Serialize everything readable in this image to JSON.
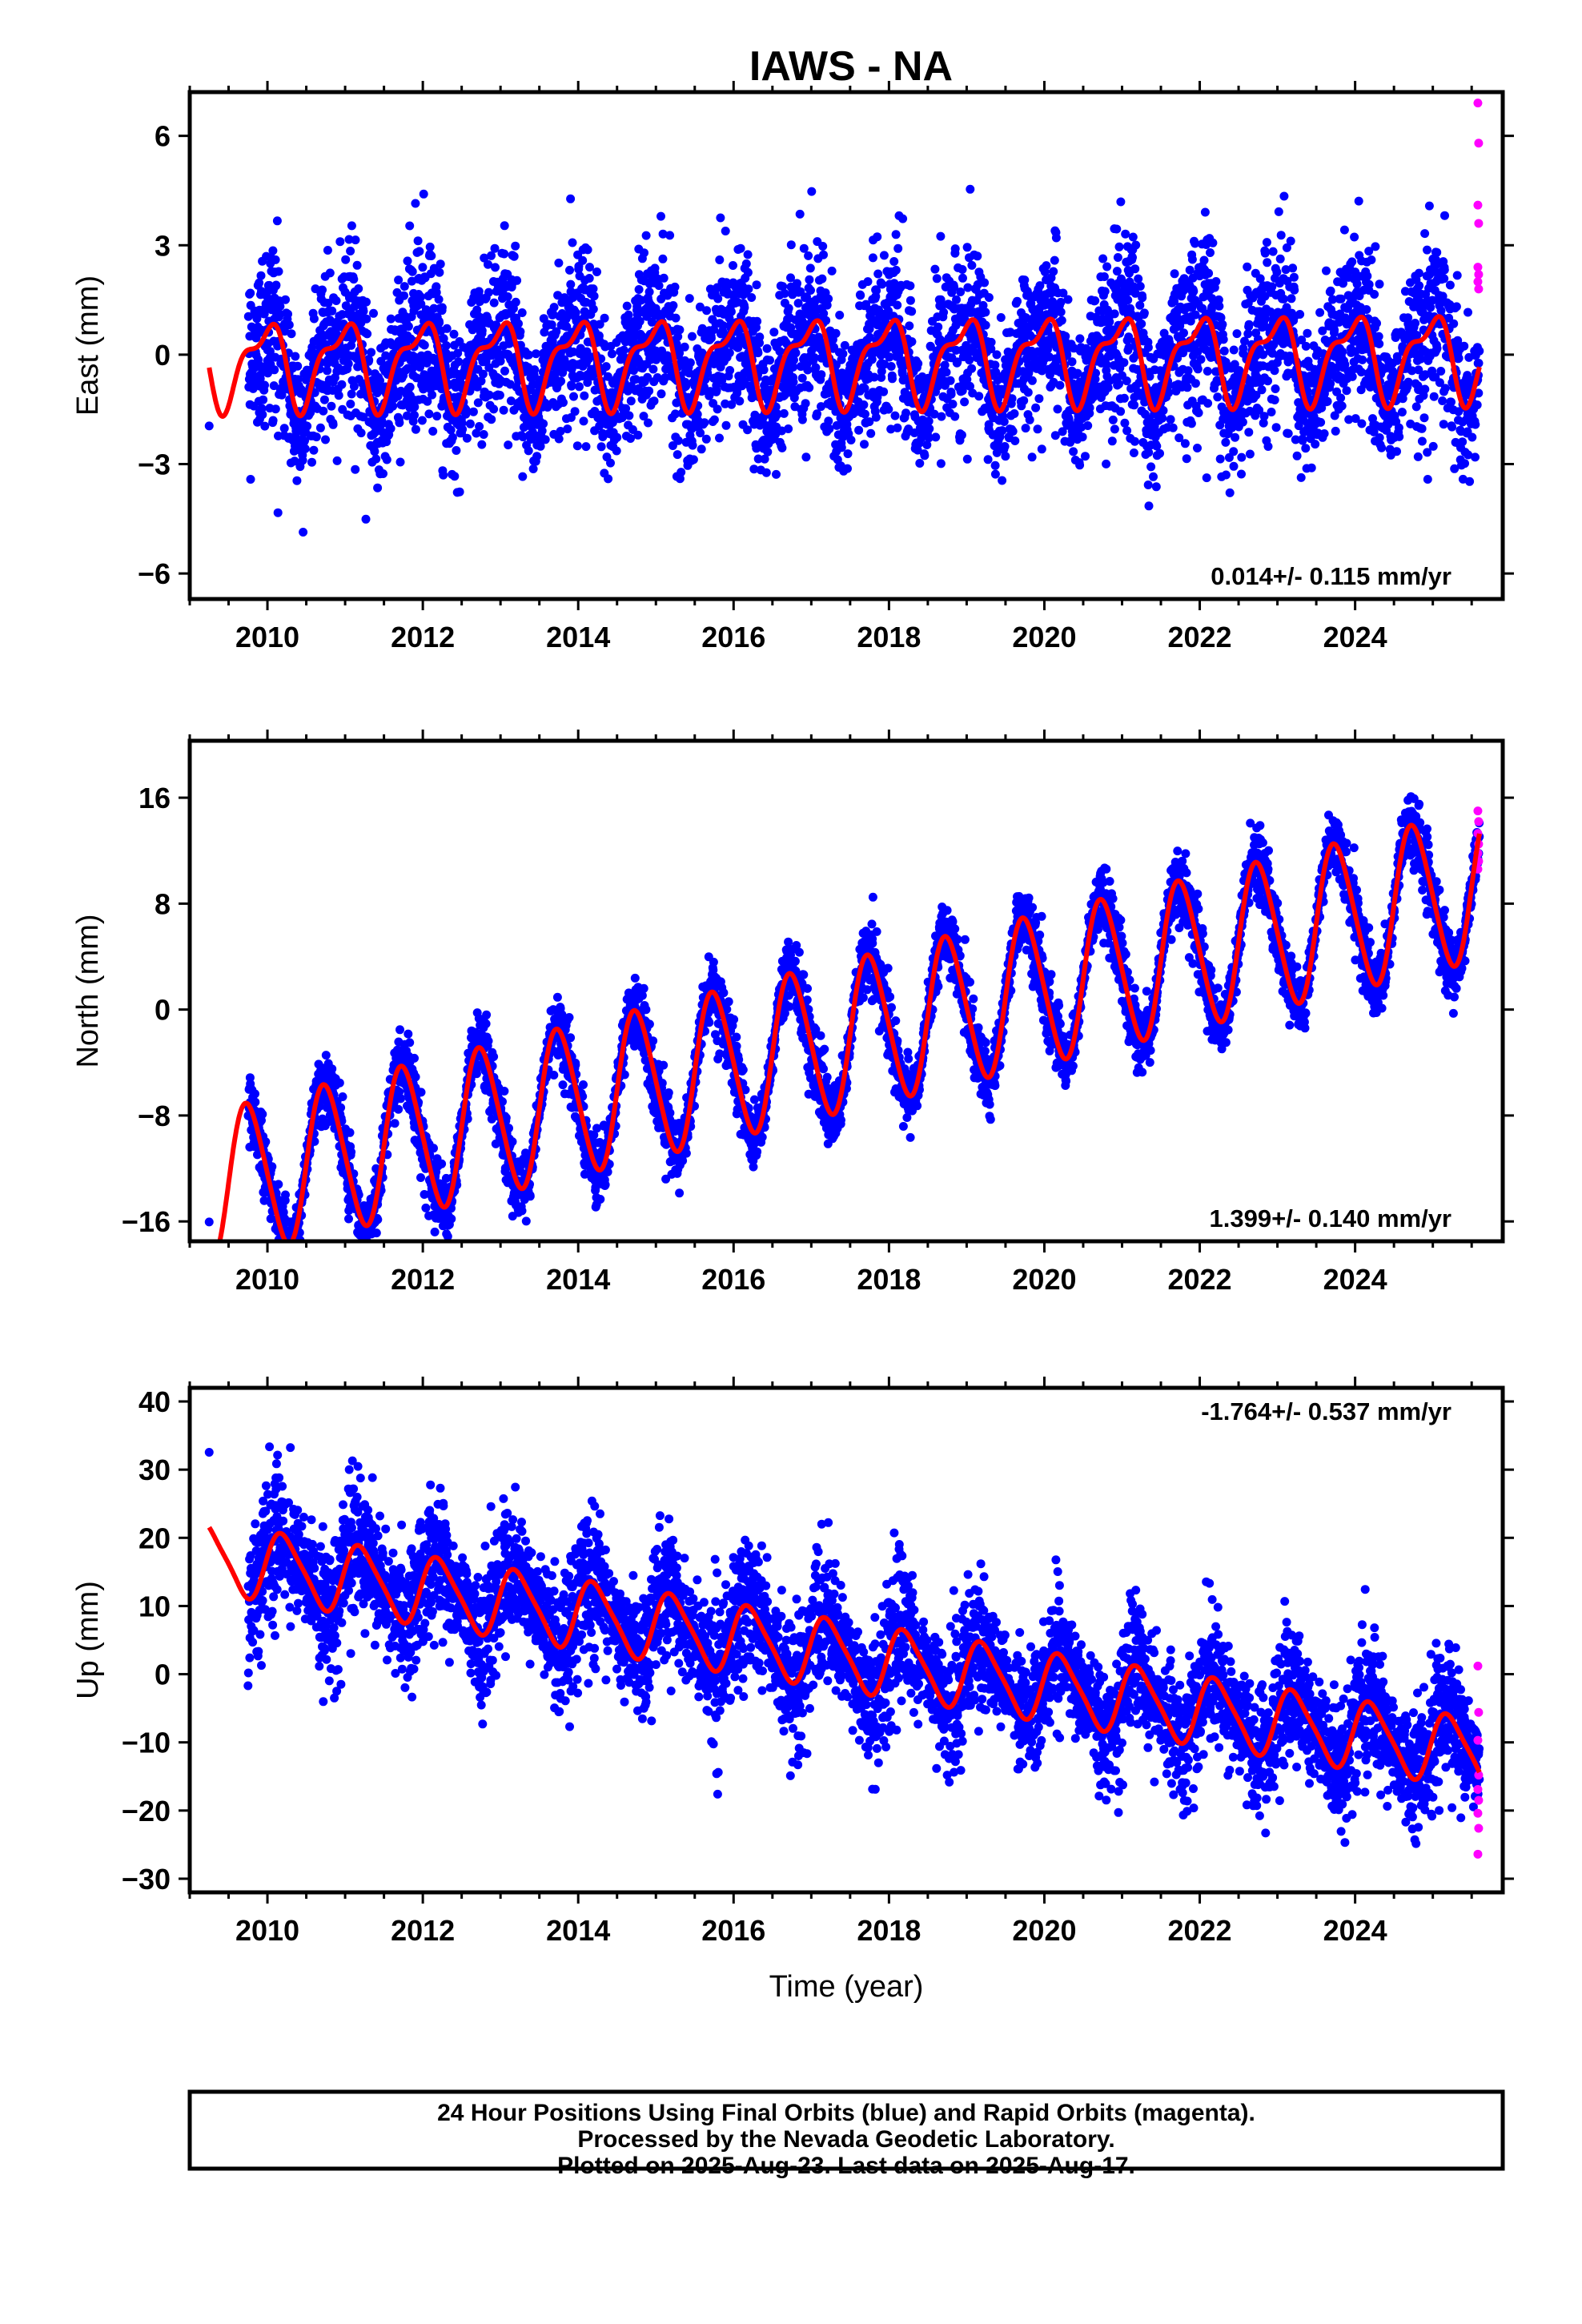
{
  "chart_data": {
    "type": "scatter",
    "title": "IAWS - NA",
    "xlabel": "Time (year)",
    "x_ticks": [
      2010,
      2012,
      2014,
      2016,
      2018,
      2020,
      2022,
      2024
    ],
    "xlim": [
      2009.0,
      2025.9
    ],
    "colors": {
      "final": "#0000ff",
      "rapid": "#ff00ff",
      "model": "#ff0000"
    },
    "panels": [
      {
        "name": "east",
        "ylabel": "East (mm)",
        "ylim": [
          -6.7,
          7.2
        ],
        "y_ticks": [
          6,
          3,
          0,
          -3,
          -6
        ],
        "rate": "0.014+/- 0.115 mm/yr",
        "rate_position": "bottom-right",
        "model": {
          "start": 2009.25,
          "end": 2025.6,
          "offset": -0.14,
          "trend": 0.014,
          "annual_amp": 1.05,
          "annual_phase": 1.8,
          "semi_amp": 0.45,
          "semi_phase": -0.3
        },
        "scatter_sd": 1.0,
        "rapid_values": [
          6.9,
          5.8,
          4.1,
          3.6,
          2.4,
          2.2,
          2.0,
          1.8
        ]
      },
      {
        "name": "north",
        "ylabel": "North (mm)",
        "ylim": [
          -17.5,
          20.3
        ],
        "y_ticks": [
          16,
          8,
          0,
          -8,
          -16
        ],
        "rate": "1.399+/- 0.140 mm/yr",
        "rate_position": "bottom-right",
        "model": {
          "start": 2009.25,
          "end": 2025.6,
          "offset": -2.6,
          "trend": 1.399,
          "annual_amp": 5.6,
          "annual_phase": 3.14,
          "semi_amp": 0.6,
          "semi_phase": 0.0
        },
        "scatter_sd": 1.1,
        "rapid_values": [
          15.0,
          14.2,
          13.3,
          12.5,
          11.8,
          11.2,
          10.6
        ]
      },
      {
        "name": "up",
        "ylabel": "Up (mm)",
        "ylim": [
          -32,
          42
        ],
        "y_ticks": [
          40,
          30,
          20,
          10,
          0,
          -10,
          -20,
          -30
        ],
        "rate": "-1.764+/- 0.537 mm/yr",
        "rate_position": "top-right",
        "model": {
          "start": 2009.25,
          "end": 2025.6,
          "offset": 3.5,
          "trend": -1.764,
          "annual_amp": 4.9,
          "annual_phase": 0.2,
          "semi_amp": 0.9,
          "semi_phase": 0.5
        },
        "scatter_sd": 4.2,
        "rapid_values": [
          1.2,
          -5.6,
          -9.7,
          -14.8,
          -16.9,
          -18.5,
          -20.4,
          -22.6,
          -26.4
        ]
      }
    ]
  },
  "footer": {
    "line1": "24 Hour Positions Using Final Orbits (blue) and Rapid Orbits (magenta).",
    "line2": "Processed by the Nevada Geodetic Laboratory.",
    "line3": "Plotted on 2025-Aug-23. Last data on 2025-Aug-17."
  }
}
